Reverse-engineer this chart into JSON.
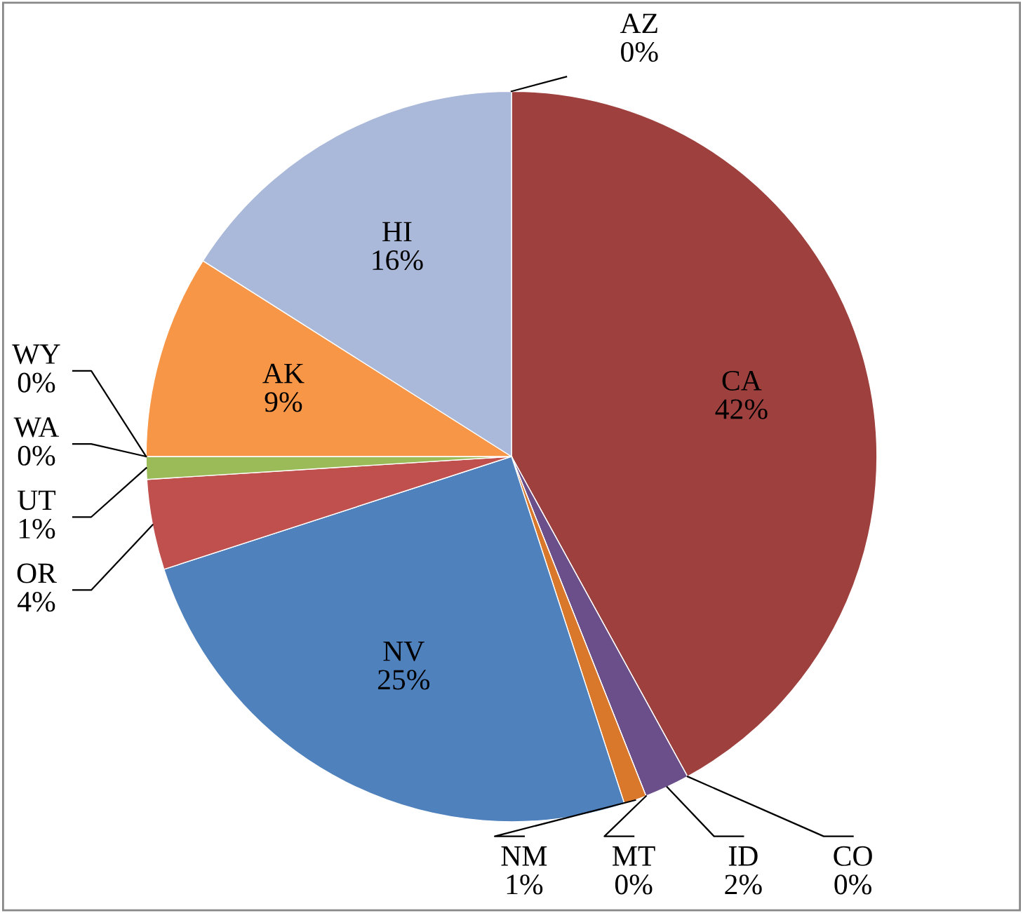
{
  "chart_data": {
    "type": "pie",
    "categories": [
      "AZ",
      "CA",
      "CO",
      "ID",
      "MT",
      "NM",
      "NV",
      "OR",
      "UT",
      "WA",
      "WY",
      "AK",
      "HI"
    ],
    "values": [
      0,
      42,
      0,
      2,
      0,
      1,
      25,
      4,
      1,
      0,
      0,
      9,
      16
    ],
    "value_labels": [
      "0%",
      "42%",
      "0%",
      "2%",
      "0%",
      "1%",
      "25%",
      "4%",
      "1%",
      "0%",
      "0%",
      "9%",
      "16%"
    ],
    "colors": [
      "#4f81bd",
      "#9e413e",
      "#8a9a3a",
      "#6b4f8a",
      "#3a9ab5",
      "#d9772b",
      "#4f81bd",
      "#c0504d",
      "#9bbb59",
      "#4bacc6",
      "#7a63a0",
      "#f79646",
      "#aab9d9"
    ]
  }
}
